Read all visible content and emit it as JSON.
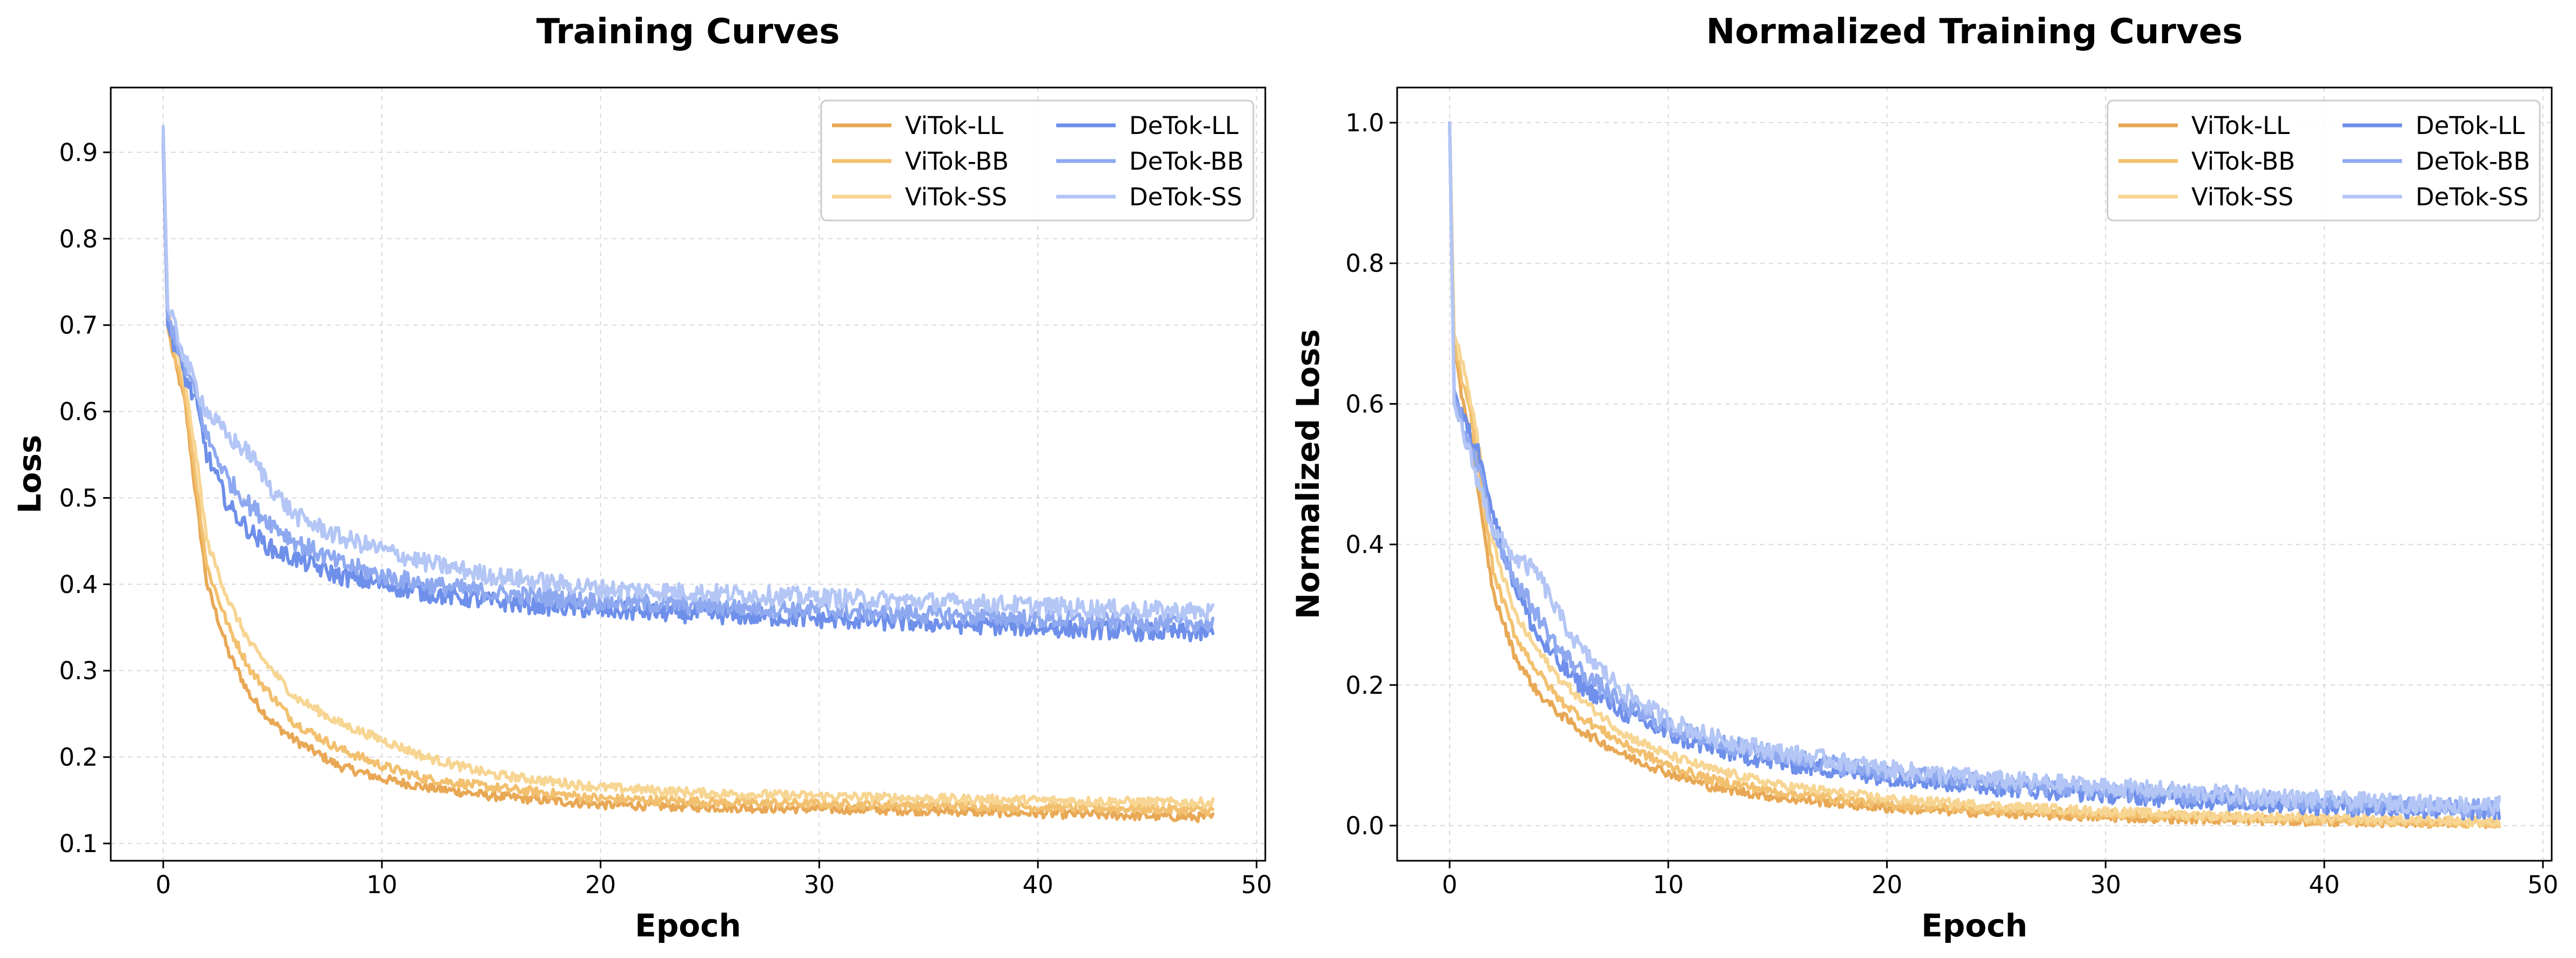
{
  "chart_data": [
    {
      "type": "line",
      "title": "Training Curves",
      "xlabel": "Epoch",
      "ylabel": "Loss",
      "xlim": [
        -2.4,
        50.4
      ],
      "ylim": [
        0.08,
        0.975
      ],
      "xticks": [
        0,
        10,
        20,
        30,
        40,
        50
      ],
      "yticks": [
        0.1,
        0.2,
        0.3,
        0.4,
        0.5,
        0.6,
        0.7,
        0.8,
        0.9
      ],
      "tick_decimals": 1,
      "grid": true,
      "legend_position": "top-right",
      "x": [
        0,
        0.2,
        0.5,
        1,
        1.5,
        2,
        3,
        4,
        5,
        6,
        8,
        10,
        12,
        15,
        20,
        25,
        30,
        35,
        40,
        45,
        48
      ],
      "series": [
        {
          "name": "ViTok-LL",
          "color": "#E8A855",
          "values": [
            0.91,
            0.7,
            0.66,
            0.61,
            0.5,
            0.4,
            0.32,
            0.27,
            0.24,
            0.22,
            0.19,
            0.175,
            0.165,
            0.155,
            0.145,
            0.142,
            0.14,
            0.138,
            0.135,
            0.132,
            0.13
          ]
        },
        {
          "name": "ViTok-BB",
          "color": "#F2C06E",
          "values": [
            0.92,
            0.71,
            0.67,
            0.62,
            0.52,
            0.42,
            0.35,
            0.3,
            0.27,
            0.24,
            0.21,
            0.19,
            0.175,
            0.165,
            0.152,
            0.148,
            0.146,
            0.144,
            0.142,
            0.14,
            0.138
          ]
        },
        {
          "name": "ViTok-SS",
          "color": "#F7D592",
          "values": [
            0.93,
            0.72,
            0.68,
            0.63,
            0.55,
            0.45,
            0.38,
            0.33,
            0.3,
            0.27,
            0.24,
            0.22,
            0.2,
            0.18,
            0.165,
            0.158,
            0.155,
            0.152,
            0.15,
            0.148,
            0.147
          ]
        },
        {
          "name": "DeTok-LL",
          "color": "#6E8FEA",
          "values": [
            0.91,
            0.7,
            0.68,
            0.64,
            0.61,
            0.55,
            0.49,
            0.46,
            0.44,
            0.43,
            0.41,
            0.4,
            0.39,
            0.38,
            0.37,
            0.365,
            0.36,
            0.355,
            0.35,
            0.345,
            0.343
          ]
        },
        {
          "name": "DeTok-BB",
          "color": "#8EA9F0",
          "values": [
            0.92,
            0.71,
            0.69,
            0.65,
            0.62,
            0.57,
            0.52,
            0.49,
            0.47,
            0.45,
            0.425,
            0.41,
            0.4,
            0.39,
            0.38,
            0.375,
            0.37,
            0.365,
            0.36,
            0.355,
            0.355
          ]
        },
        {
          "name": "DeTok-SS",
          "color": "#B3C6F5",
          "values": [
            0.93,
            0.72,
            0.7,
            0.66,
            0.63,
            0.6,
            0.57,
            0.55,
            0.51,
            0.48,
            0.455,
            0.44,
            0.425,
            0.41,
            0.395,
            0.39,
            0.385,
            0.38,
            0.375,
            0.37,
            0.368
          ]
        }
      ]
    },
    {
      "type": "line",
      "title": "Normalized Training Curves",
      "xlabel": "Epoch",
      "ylabel": "Normalized Loss",
      "xlim": [
        -2.4,
        50.4
      ],
      "ylim": [
        -0.05,
        1.05
      ],
      "xticks": [
        0,
        10,
        20,
        30,
        40,
        50
      ],
      "yticks": [
        0.0,
        0.2,
        0.4,
        0.6,
        0.8,
        1.0
      ],
      "tick_decimals": 1,
      "grid": true,
      "legend_position": "top-right",
      "x": [
        0,
        0.2,
        0.5,
        1,
        1.5,
        2,
        3,
        4,
        5,
        6,
        8,
        10,
        12,
        15,
        20,
        25,
        30,
        35,
        40,
        45,
        48
      ],
      "series": [
        {
          "name": "ViTok-LL",
          "color": "#E8A855",
          "values": [
            1.0,
            0.68,
            0.62,
            0.55,
            0.43,
            0.33,
            0.24,
            0.19,
            0.16,
            0.135,
            0.1,
            0.075,
            0.055,
            0.04,
            0.025,
            0.018,
            0.012,
            0.009,
            0.006,
            0.004,
            0.003
          ]
        },
        {
          "name": "ViTok-BB",
          "color": "#F2C06E",
          "values": [
            1.0,
            0.69,
            0.64,
            0.58,
            0.47,
            0.36,
            0.27,
            0.22,
            0.18,
            0.155,
            0.115,
            0.085,
            0.065,
            0.048,
            0.03,
            0.022,
            0.016,
            0.012,
            0.008,
            0.005,
            0.004
          ]
        },
        {
          "name": "ViTok-SS",
          "color": "#F7D592",
          "values": [
            1.0,
            0.7,
            0.67,
            0.6,
            0.51,
            0.4,
            0.3,
            0.25,
            0.21,
            0.18,
            0.13,
            0.1,
            0.08,
            0.058,
            0.038,
            0.028,
            0.02,
            0.014,
            0.01,
            0.007,
            0.005
          ]
        },
        {
          "name": "DeTok-LL",
          "color": "#6E8FEA",
          "values": [
            1.0,
            0.62,
            0.59,
            0.55,
            0.52,
            0.44,
            0.34,
            0.27,
            0.23,
            0.2,
            0.16,
            0.13,
            0.11,
            0.09,
            0.07,
            0.055,
            0.045,
            0.035,
            0.028,
            0.022,
            0.02
          ]
        },
        {
          "name": "DeTok-BB",
          "color": "#8EA9F0",
          "values": [
            1.0,
            0.61,
            0.58,
            0.53,
            0.49,
            0.42,
            0.35,
            0.3,
            0.25,
            0.22,
            0.17,
            0.14,
            0.12,
            0.1,
            0.075,
            0.06,
            0.05,
            0.04,
            0.032,
            0.026,
            0.024
          ]
        },
        {
          "name": "DeTok-SS",
          "color": "#B3C6F5",
          "values": [
            1.0,
            0.6,
            0.57,
            0.52,
            0.47,
            0.42,
            0.38,
            0.36,
            0.3,
            0.25,
            0.19,
            0.15,
            0.125,
            0.105,
            0.08,
            0.065,
            0.055,
            0.045,
            0.036,
            0.03,
            0.028
          ]
        }
      ]
    }
  ]
}
